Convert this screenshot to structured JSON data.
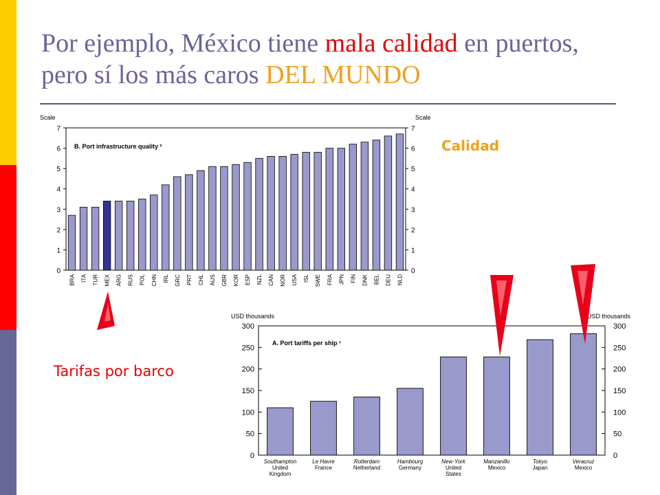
{
  "slide": {
    "title_part1": "Por ejemplo, México tiene ",
    "title_red": "mala calidad",
    "title_part2": " en puertos,",
    "title_line2": "pero sí los más caros ",
    "title_orange": "DEL MUNDO",
    "label_calidad": "Calidad",
    "label_tarifas": "Tarifas por barco",
    "colors": {
      "title": "#666699",
      "red": "#e60000",
      "orange": "#f0a020",
      "bar_fill": "#9999cc",
      "bar_highlight": "#333399",
      "sidebar": [
        "#ffcc00",
        "#ff0000",
        "#666699"
      ]
    }
  },
  "chart_data": [
    {
      "type": "bar",
      "title": "B. Port infrastructure quality ²",
      "ylabel_left": "Scale",
      "ylabel_right": "Scale",
      "ylim": [
        0,
        7
      ],
      "yticks": [
        0,
        1,
        2,
        3,
        4,
        5,
        6,
        7
      ],
      "highlight": "MEX",
      "categories": [
        "BRA",
        "ITA",
        "TUR",
        "MEX",
        "ARG",
        "RUS",
        "POL",
        "CHN",
        "IRL",
        "GRC",
        "PRT",
        "CHL",
        "AUS",
        "GBR",
        "KOR",
        "ESP",
        "NZL",
        "CAN",
        "NOR",
        "USA",
        "ISL",
        "SWE",
        "FRA",
        "JPN",
        "FIN",
        "DNK",
        "BEL",
        "DEU",
        "NLD"
      ],
      "values": [
        2.7,
        3.1,
        3.1,
        3.4,
        3.4,
        3.4,
        3.5,
        3.7,
        4.2,
        4.6,
        4.7,
        4.9,
        5.1,
        5.1,
        5.2,
        5.3,
        5.5,
        5.6,
        5.6,
        5.7,
        5.8,
        5.8,
        6.0,
        6.0,
        6.2,
        6.3,
        6.4,
        6.6,
        6.7
      ]
    },
    {
      "type": "bar",
      "title": "A. Port tariffs per ship ¹",
      "ylabel_left": "USD thousands",
      "ylabel_right": "USD thousands",
      "ylim": [
        0,
        300
      ],
      "yticks": [
        0,
        50,
        100,
        150,
        200,
        250,
        300
      ],
      "categories": [
        {
          "port": "Southampton",
          "country": "United Kingdom"
        },
        {
          "port": "Le Havre",
          "country": "France"
        },
        {
          "port": "Rotterdam",
          "country": "Netherland"
        },
        {
          "port": "Hambourg",
          "country": "Germany"
        },
        {
          "port": "New-York",
          "country": "United States"
        },
        {
          "port": "Manzanillo",
          "country": "Mexico"
        },
        {
          "port": "Tokyo",
          "country": "Japan"
        },
        {
          "port": "Veracruz",
          "country": "Mexico"
        }
      ],
      "values": [
        110,
        125,
        135,
        155,
        228,
        228,
        268,
        282
      ]
    }
  ]
}
